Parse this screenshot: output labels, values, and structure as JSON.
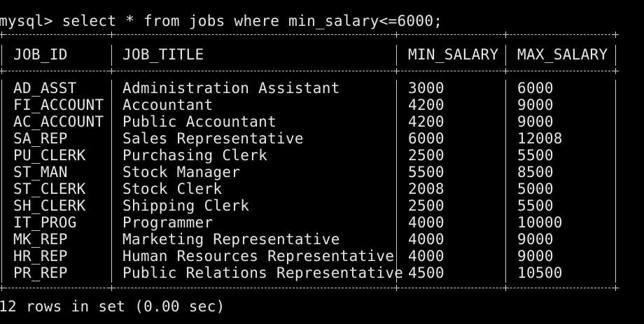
{
  "terminal": {
    "command_line": "mysql> select * from jobs where min_salary<=6000;",
    "footer": "12 rows in set (0.00 sec)"
  },
  "table": {
    "columns": [
      "JOB_ID",
      "JOB_TITLE",
      "MIN_SALARY",
      "MAX_SALARY"
    ],
    "rows": [
      [
        "AD_ASST",
        "Administration Assistant",
        "3000",
        "6000"
      ],
      [
        "FI_ACCOUNT",
        "Accountant",
        "4200",
        "9000"
      ],
      [
        "AC_ACCOUNT",
        "Public Accountant",
        "4200",
        "9000"
      ],
      [
        "SA_REP",
        "Sales Representative",
        "6000",
        "12008"
      ],
      [
        "PU_CLERK",
        "Purchasing Clerk",
        "2500",
        "5500"
      ],
      [
        "ST_MAN",
        "Stock Manager",
        "5500",
        "8500"
      ],
      [
        "ST_CLERK",
        "Stock Clerk",
        "2008",
        "5000"
      ],
      [
        "SH_CLERK",
        "Shipping Clerk",
        "2500",
        "5500"
      ],
      [
        "IT_PROG",
        "Programmer",
        "4000",
        "10000"
      ],
      [
        "MK_REP",
        "Marketing Representative",
        "4000",
        "9000"
      ],
      [
        "HR_REP",
        "Human Resources Representative",
        "4000",
        "9000"
      ],
      [
        "PR_REP",
        "Public Relations Representative",
        "4500",
        "10500"
      ]
    ]
  },
  "colors": {
    "background": "#000000",
    "text": "#e6e6e6",
    "border": "#cfcfcf"
  }
}
